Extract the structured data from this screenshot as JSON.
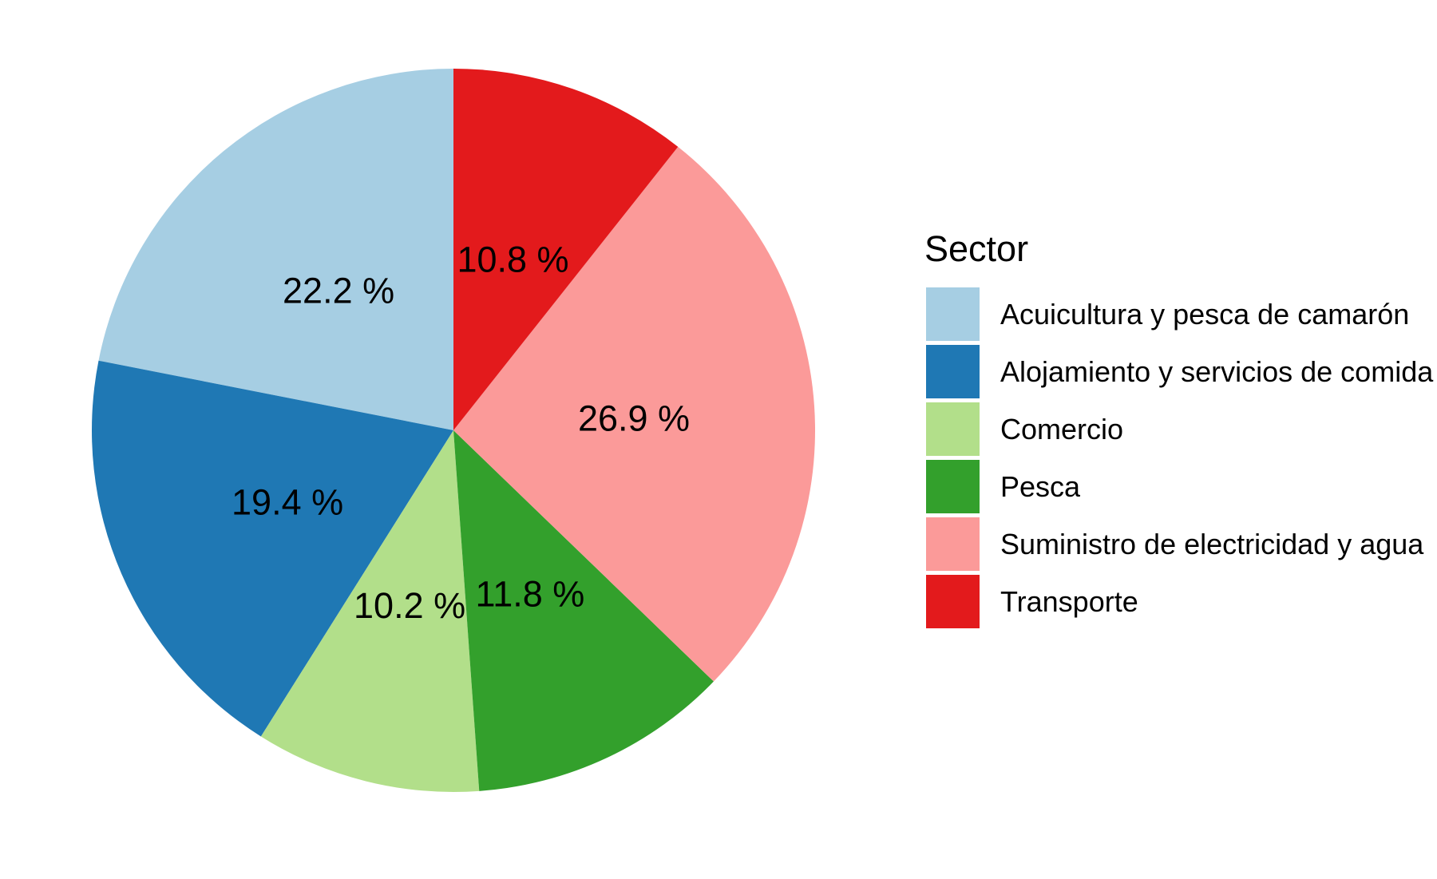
{
  "chart_data": {
    "type": "pie",
    "legend": {
      "title": "Sector",
      "position": "right"
    },
    "start": "12 o'clock",
    "direction": "counterclockwise",
    "slices": [
      {
        "label": "Acuicultura y pesca de camarón",
        "value": 22.2,
        "value_label": "22.2 %",
        "color": "#a6cee3"
      },
      {
        "label": "Alojamiento y servicios de comida",
        "value": 19.4,
        "value_label": "19.4 %",
        "color": "#1f78b4"
      },
      {
        "label": "Comercio",
        "value": 10.2,
        "value_label": "10.2 %",
        "color": "#b2df8a"
      },
      {
        "label": "Pesca",
        "value": 11.8,
        "value_label": "11.8 %",
        "color": "#33a02c"
      },
      {
        "label": "Suministro de electricidad y agua",
        "value": 26.9,
        "value_label": "26.9 %",
        "color": "#fb9a99"
      },
      {
        "label": "Transporte",
        "value": 10.8,
        "value_label": "10.8 %",
        "color": "#e31a1c"
      }
    ]
  }
}
